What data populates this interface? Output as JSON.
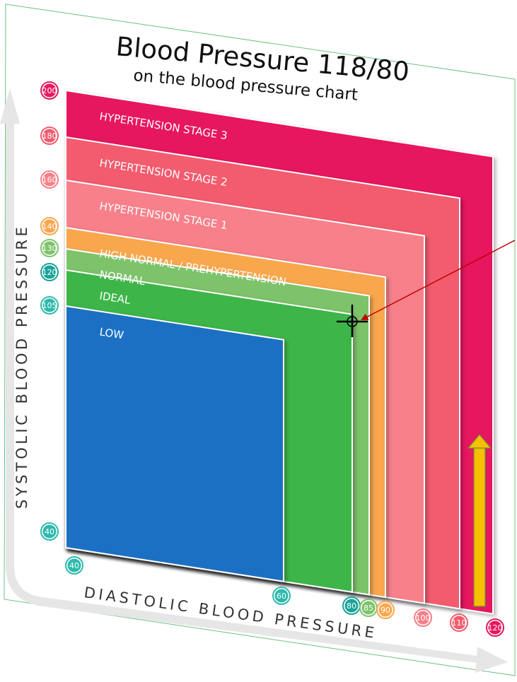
{
  "chart_data": {
    "type": "area",
    "title": "Blood Pressure 118/80",
    "subtitle": "on the blood pressure chart",
    "ylabel": "SYSTOLIC BLOOD PRESSURE",
    "xlabel": "DIASTOLIC BLOOD PRESSURE",
    "y_ticks": [
      "200",
      "180",
      "160",
      "140",
      "130",
      "120",
      "105",
      "40"
    ],
    "x_ticks": [
      "40",
      "60",
      "80",
      "85",
      "90",
      "100",
      "110",
      "120"
    ],
    "zones": [
      {
        "label": "HYPERTENSION STAGE 3",
        "systolic_max": 200,
        "diastolic_max": 120,
        "color": "#e6195e"
      },
      {
        "label": "HYPERTENSION STAGE 2",
        "systolic_max": 180,
        "diastolic_max": 110,
        "color": "#f25c6e"
      },
      {
        "label": "HYPERTENSION STAGE 1",
        "systolic_max": 160,
        "diastolic_max": 100,
        "color": "#f7808a"
      },
      {
        "label": "HIGH NORMAL / PREHYPERTENSION",
        "systolic_max": 140,
        "diastolic_max": 90,
        "color": "#f9a74e"
      },
      {
        "label": "NORMAL",
        "systolic_max": 130,
        "diastolic_max": 85,
        "color": "#7dc36b"
      },
      {
        "label": "IDEAL",
        "systolic_max": 120,
        "diastolic_max": 80,
        "color": "#3db54a"
      },
      {
        "label": "LOW",
        "systolic_max": 105,
        "diastolic_max": 60,
        "color": "#1e6fc4"
      }
    ],
    "marker": {
      "systolic": 118,
      "diastolic": 80
    }
  }
}
